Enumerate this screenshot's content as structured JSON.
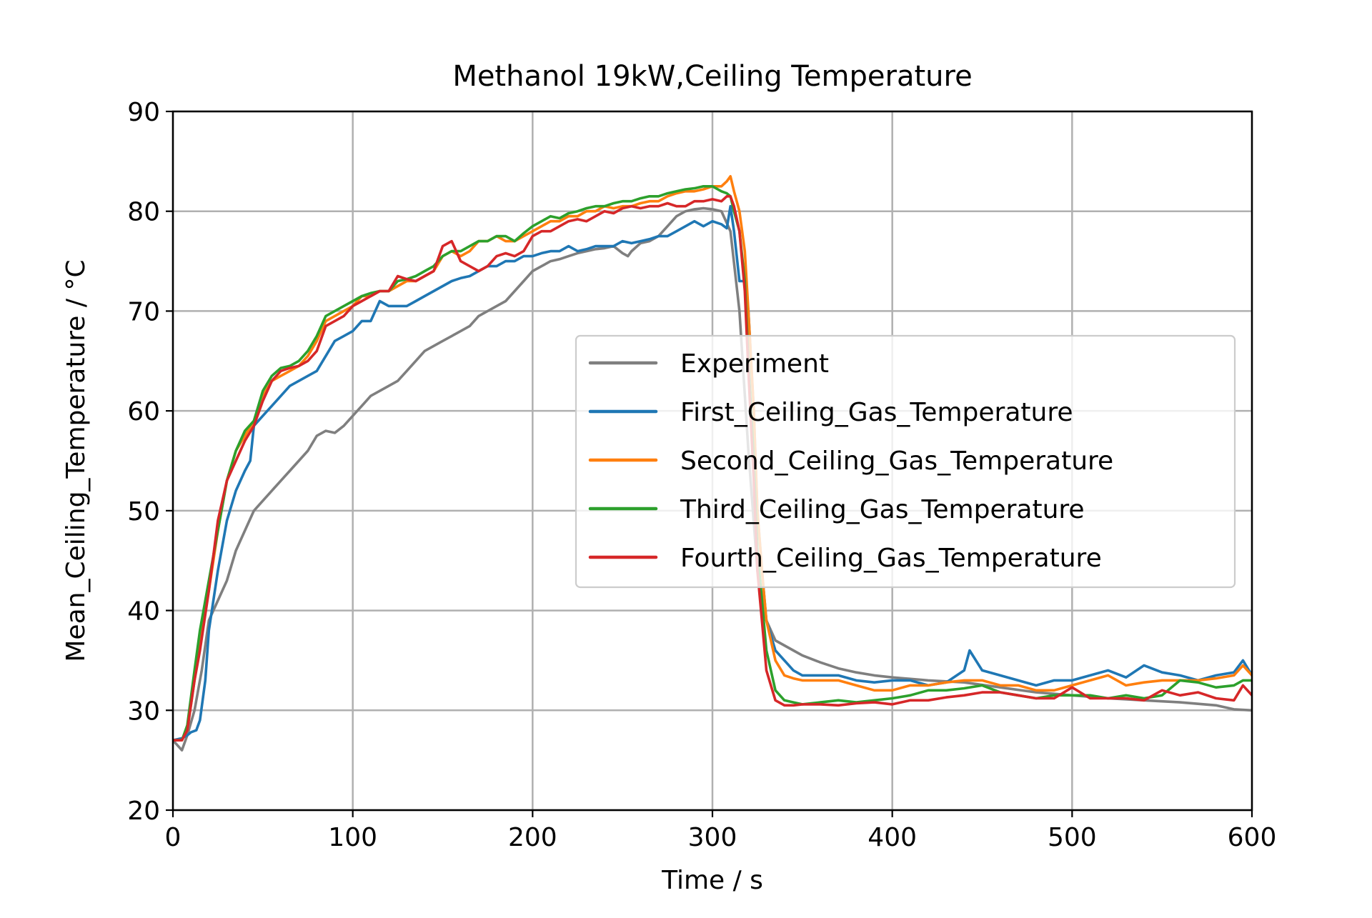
{
  "chart_data": {
    "type": "line",
    "title": "Methanol 19kW,Ceiling Temperature",
    "xlabel": "Time / s",
    "ylabel": "Mean_Ceiling_Temperature / °C",
    "xlim": [
      0,
      600
    ],
    "ylim": [
      20,
      90
    ],
    "xticks": [
      0,
      100,
      200,
      300,
      400,
      500,
      600
    ],
    "yticks": [
      20,
      30,
      40,
      50,
      60,
      70,
      80,
      90
    ],
    "grid": true,
    "legend_position": "center-right",
    "series": [
      {
        "name": "Experiment",
        "color": "#7f7f7f",
        "x": [
          0,
          5,
          8,
          12,
          16,
          20,
          25,
          30,
          35,
          40,
          45,
          50,
          55,
          60,
          65,
          70,
          75,
          80,
          85,
          90,
          95,
          100,
          105,
          110,
          115,
          120,
          125,
          130,
          135,
          140,
          145,
          150,
          155,
          160,
          165,
          170,
          175,
          180,
          185,
          190,
          195,
          200,
          205,
          210,
          215,
          220,
          225,
          230,
          235,
          240,
          245,
          250,
          253,
          255,
          260,
          265,
          270,
          275,
          280,
          285,
          290,
          295,
          300,
          305,
          310,
          315,
          320,
          325,
          330,
          335,
          340,
          345,
          350,
          360,
          370,
          380,
          390,
          400,
          420,
          440,
          460,
          480,
          500,
          520,
          540,
          560,
          580,
          590,
          600
        ],
        "y": [
          27,
          26,
          27.5,
          30,
          34,
          39,
          41,
          43,
          46,
          48,
          50,
          51,
          52,
          53,
          54,
          55,
          56,
          57.5,
          58,
          57.8,
          58.5,
          59.5,
          60.5,
          61.5,
          62,
          62.5,
          63,
          64,
          65,
          66,
          66.5,
          67,
          67.5,
          68,
          68.5,
          69.5,
          70,
          70.5,
          71,
          72,
          73,
          74,
          74.5,
          75,
          75.2,
          75.5,
          75.8,
          76,
          76.2,
          76.3,
          76.5,
          75.8,
          75.5,
          76,
          76.8,
          77,
          77.5,
          78.5,
          79.5,
          80,
          80.2,
          80.3,
          80.2,
          80,
          78,
          70,
          56,
          44,
          39,
          37,
          36.5,
          36,
          35.5,
          34.8,
          34.2,
          33.8,
          33.5,
          33.3,
          33,
          32.8,
          32.3,
          31.8,
          31.5,
          31.2,
          31,
          30.8,
          30.5,
          30.1,
          30
        ]
      },
      {
        "name": "First_Ceiling_Gas_Temperature",
        "color": "#1f77b4",
        "x": [
          0,
          5,
          8,
          10,
          13,
          15,
          18,
          20,
          25,
          30,
          35,
          40,
          43,
          45,
          50,
          55,
          60,
          65,
          70,
          75,
          80,
          85,
          90,
          95,
          100,
          105,
          110,
          115,
          120,
          125,
          130,
          135,
          140,
          145,
          150,
          155,
          160,
          165,
          170,
          175,
          180,
          185,
          190,
          195,
          200,
          205,
          210,
          215,
          220,
          225,
          230,
          235,
          240,
          245,
          250,
          255,
          260,
          265,
          270,
          275,
          280,
          285,
          290,
          295,
          300,
          305,
          308,
          310,
          312,
          315,
          318,
          320,
          323,
          325,
          328,
          330,
          335,
          340,
          345,
          350,
          360,
          370,
          380,
          390,
          400,
          410,
          420,
          430,
          440,
          443,
          450,
          460,
          470,
          480,
          490,
          500,
          510,
          520,
          530,
          540,
          550,
          560,
          570,
          580,
          590,
          595,
          600
        ],
        "y": [
          27,
          27.2,
          27.5,
          27.8,
          28,
          29,
          33,
          38,
          44,
          49,
          52,
          54,
          55,
          58.5,
          59.5,
          60.5,
          61.5,
          62.5,
          63,
          63.5,
          64,
          65.5,
          67,
          67.5,
          68,
          69,
          69,
          71,
          70.5,
          70.5,
          70.5,
          71,
          71.5,
          72,
          72.5,
          73,
          73.3,
          73.5,
          74,
          74.5,
          74.5,
          75,
          75,
          75.5,
          75.5,
          75.8,
          76,
          76,
          76.5,
          76,
          76.2,
          76.5,
          76.5,
          76.5,
          77,
          76.8,
          77,
          77.2,
          77.5,
          77.5,
          78,
          78.5,
          79,
          78.5,
          79,
          78.7,
          78.3,
          80.5,
          78,
          73,
          73,
          70,
          60,
          50,
          43,
          39,
          36,
          35,
          34,
          33.5,
          33.5,
          33.5,
          33,
          32.8,
          33,
          33,
          32.5,
          32.8,
          34,
          36,
          34,
          33.5,
          33,
          32.5,
          33,
          33,
          33.5,
          34,
          33.3,
          34.5,
          33.8,
          33.5,
          33,
          33.5,
          33.8,
          35,
          33.5
        ]
      },
      {
        "name": "Second_Ceiling_Gas_Temperature",
        "color": "#ff7f0e",
        "x": [
          0,
          5,
          8,
          12,
          15,
          20,
          25,
          30,
          35,
          40,
          45,
          50,
          55,
          60,
          65,
          70,
          75,
          80,
          85,
          90,
          95,
          100,
          105,
          110,
          115,
          120,
          125,
          130,
          135,
          140,
          145,
          150,
          155,
          160,
          165,
          170,
          175,
          180,
          185,
          190,
          195,
          200,
          205,
          210,
          215,
          220,
          225,
          230,
          235,
          240,
          245,
          250,
          255,
          260,
          265,
          270,
          275,
          280,
          285,
          290,
          295,
          300,
          305,
          308,
          310,
          312,
          315,
          318,
          320,
          323,
          325,
          328,
          330,
          335,
          340,
          345,
          350,
          360,
          370,
          380,
          390,
          400,
          410,
          420,
          430,
          440,
          450,
          460,
          470,
          480,
          490,
          500,
          510,
          520,
          530,
          540,
          550,
          560,
          570,
          580,
          590,
          595,
          600
        ],
        "y": [
          27,
          27,
          28,
          33,
          37,
          42,
          48,
          53,
          56,
          57.5,
          59,
          61.5,
          63,
          63.5,
          64,
          64.5,
          65.5,
          67,
          69,
          69.5,
          70,
          70.5,
          71.5,
          71.5,
          72,
          72,
          72.5,
          73,
          73,
          73.5,
          74,
          75.5,
          76,
          75.5,
          76,
          77,
          77,
          77.5,
          77,
          77,
          77.5,
          78,
          78.5,
          79,
          79,
          79.5,
          79.5,
          80,
          80,
          80.5,
          80.3,
          80.5,
          80.5,
          80.8,
          81,
          81,
          81.5,
          81.8,
          82,
          82,
          82.2,
          82.5,
          82.5,
          83,
          83.5,
          82,
          80,
          76,
          70,
          60,
          50,
          43,
          39,
          35,
          33.5,
          33.2,
          33,
          33,
          33,
          32.5,
          32,
          32,
          32.5,
          32.5,
          32.8,
          33,
          33,
          32.5,
          32.5,
          32,
          32,
          32.5,
          33,
          33.5,
          32.5,
          32.8,
          33,
          33,
          33,
          33.2,
          33.5,
          34.5,
          33.5
        ]
      },
      {
        "name": "Third_Ceiling_Gas_Temperature",
        "color": "#2ca02c",
        "x": [
          0,
          5,
          8,
          12,
          15,
          20,
          25,
          30,
          35,
          40,
          45,
          50,
          55,
          60,
          65,
          70,
          75,
          80,
          85,
          90,
          95,
          100,
          105,
          110,
          115,
          120,
          125,
          130,
          135,
          140,
          145,
          150,
          155,
          160,
          165,
          170,
          175,
          180,
          185,
          190,
          195,
          200,
          205,
          210,
          215,
          220,
          225,
          230,
          235,
          240,
          245,
          250,
          255,
          260,
          265,
          270,
          275,
          280,
          285,
          290,
          295,
          300,
          305,
          308,
          310,
          312,
          315,
          318,
          320,
          323,
          325,
          328,
          330,
          335,
          340,
          345,
          350,
          360,
          370,
          380,
          390,
          400,
          410,
          420,
          430,
          440,
          450,
          460,
          470,
          480,
          490,
          500,
          510,
          520,
          530,
          540,
          550,
          560,
          570,
          580,
          590,
          595,
          600
        ],
        "y": [
          27,
          27,
          28.5,
          34,
          38,
          43,
          48,
          53,
          56,
          58,
          59,
          62,
          63.5,
          64.3,
          64.5,
          65,
          66,
          67.5,
          69.5,
          70,
          70.5,
          71,
          71.5,
          71.8,
          72,
          72,
          73,
          73.2,
          73.5,
          74,
          74.5,
          75.5,
          76,
          76,
          76.5,
          77,
          77,
          77.5,
          77.5,
          77,
          77.8,
          78.5,
          79,
          79.5,
          79.3,
          79.8,
          80,
          80.3,
          80.5,
          80.5,
          80.8,
          81,
          81,
          81.3,
          81.5,
          81.5,
          81.8,
          82,
          82.2,
          82.3,
          82.5,
          82.5,
          82,
          81.8,
          81.5,
          80,
          78,
          73,
          65,
          55,
          46,
          40,
          36,
          32,
          31,
          30.8,
          30.6,
          30.8,
          31,
          30.8,
          31,
          31.2,
          31.5,
          32,
          32,
          32.2,
          32.5,
          31.8,
          31.5,
          31.2,
          31.5,
          31.5,
          31.5,
          31.2,
          31.5,
          31.2,
          31.5,
          33,
          32.8,
          32.3,
          32.5,
          33,
          33
        ]
      },
      {
        "name": "Fourth_Ceiling_Gas_Temperature",
        "color": "#d62728",
        "x": [
          0,
          5,
          8,
          12,
          15,
          20,
          25,
          30,
          35,
          40,
          45,
          50,
          55,
          60,
          65,
          70,
          75,
          80,
          85,
          90,
          95,
          100,
          105,
          110,
          115,
          120,
          125,
          130,
          135,
          140,
          145,
          150,
          155,
          160,
          165,
          170,
          175,
          180,
          185,
          190,
          195,
          200,
          205,
          210,
          215,
          220,
          225,
          230,
          235,
          240,
          245,
          250,
          255,
          260,
          265,
          270,
          275,
          280,
          285,
          290,
          295,
          300,
          305,
          308,
          310,
          312,
          315,
          318,
          320,
          323,
          325,
          328,
          330,
          335,
          340,
          345,
          350,
          360,
          370,
          380,
          390,
          400,
          410,
          420,
          430,
          440,
          450,
          460,
          470,
          480,
          490,
          500,
          510,
          520,
          530,
          540,
          550,
          560,
          570,
          580,
          590,
          595,
          600
        ],
        "y": [
          27,
          27,
          28,
          33,
          36,
          42,
          49,
          53,
          55,
          57,
          58.5,
          61,
          63,
          64,
          64.3,
          64.5,
          65,
          66,
          68.5,
          69,
          69.5,
          70.5,
          71,
          71.5,
          72,
          72,
          73.5,
          73.2,
          73,
          73.5,
          74,
          76.5,
          77,
          75,
          74.5,
          74,
          74.5,
          75.5,
          75.8,
          75.5,
          76,
          77.5,
          78,
          78,
          78.5,
          79,
          79.2,
          79,
          79.5,
          80,
          79.8,
          80.3,
          80.5,
          80.3,
          80.5,
          80.5,
          80.8,
          80.5,
          80.5,
          81,
          81,
          81.2,
          81,
          81.5,
          81.5,
          80.5,
          78,
          72,
          64,
          53,
          44,
          38,
          34,
          31,
          30.5,
          30.5,
          30.6,
          30.6,
          30.5,
          30.7,
          30.8,
          30.6,
          31,
          31,
          31.3,
          31.5,
          31.8,
          31.8,
          31.5,
          31.2,
          31.2,
          32.3,
          31.2,
          31.2,
          31.2,
          31,
          32,
          31.5,
          31.8,
          31.2,
          31,
          32.5,
          31.5
        ]
      }
    ]
  }
}
